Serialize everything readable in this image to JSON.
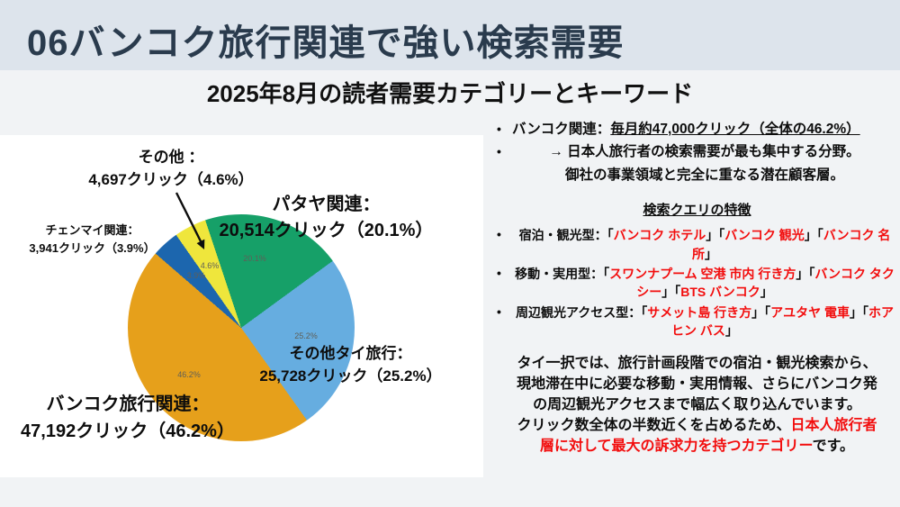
{
  "colors": {
    "header_band": "#dde4ec",
    "header_text": "#2a3b4d",
    "background": "#f1f3f5",
    "panel": "#ffffff",
    "red": "#f20d0d",
    "pct_label": "#5f5f58"
  },
  "header": {
    "title": "06バンコク旅行関連で強い検索需要",
    "subtitle": "2025年8月の読者需要カテゴリーとキーワード"
  },
  "chart_data": {
    "type": "pie",
    "title": "2025年8月の読者需要カテゴリーとキーワード",
    "start_angle_deg": -18.5,
    "direction": "clockwise",
    "legend": "none",
    "slices": [
      {
        "label": "パタヤ関連",
        "clicks": 20514,
        "value": 20.1,
        "pct_label": "20.1%",
        "color": "#16a068"
      },
      {
        "label": "その他タイ旅行",
        "clicks": 25728,
        "value": 25.2,
        "pct_label": "25.2%",
        "color": "#66ade0"
      },
      {
        "label": "バンコク旅行関連",
        "clicks": 47192,
        "value": 46.2,
        "pct_label": "46.2%",
        "color": "#e6a01b"
      },
      {
        "label": "チェンマイ関連",
        "clicks": 3941,
        "value": 3.9,
        "pct_label": "3.9%",
        "color": "#1c66ae"
      },
      {
        "label": "その他",
        "clicks": 4697,
        "value": 4.6,
        "pct_label": "4.6%",
        "color": "#efe63c"
      }
    ],
    "callouts": {
      "sonota": {
        "line1": "その他 ：",
        "line2": "4,697クリック（4.6%）"
      },
      "chiangmai": {
        "line1": "チェンマイ関連：",
        "line2": "3,941クリック（3.9%）"
      },
      "pattaya": {
        "line1": "パタヤ関連：",
        "line2": "20,514クリック（20.1%）"
      },
      "other_thai": {
        "line1": "その他タイ旅行：",
        "line2": "25,728クリック（25.2%）"
      },
      "bangkok": {
        "line1": "バンコク旅行関連：",
        "line2": "47,192クリック（46.2%）"
      }
    }
  },
  "right_column": {
    "bullet_char": "•",
    "bullets_top": [
      {
        "segments": [
          {
            "t": "バンコク関連：",
            "c": "k"
          },
          {
            "t": "毎月約47,000クリック（全体の46.2%）",
            "c": "ku"
          }
        ]
      },
      {
        "segments": [
          {
            "t": "→ 日本人旅行者の検索需要が最も集中する分野。",
            "c": "k"
          }
        ]
      },
      {
        "segments": [
          {
            "t": "御社の事業領域と完全に重なる潜在顧客層。",
            "c": "k"
          }
        ]
      }
    ],
    "features_heading": "検索クエリの特徴",
    "bullets_features": [
      {
        "segments": [
          {
            "t": "宿泊・観光型：「",
            "c": "k"
          },
          {
            "t": "バンコク ホテル",
            "c": "r"
          },
          {
            "t": "」「",
            "c": "k"
          },
          {
            "t": "バンコク 観光",
            "c": "r"
          },
          {
            "t": "」「",
            "c": "k"
          },
          {
            "t": "バンコク 名所",
            "c": "r"
          },
          {
            "t": "」",
            "c": "k"
          }
        ]
      },
      {
        "segments": [
          {
            "t": "移動・実用型：「",
            "c": "k"
          },
          {
            "t": "スワンナプーム 空港 市内 行き方",
            "c": "r"
          },
          {
            "t": "」「",
            "c": "k"
          },
          {
            "t": "バンコク タクシー",
            "c": "r"
          },
          {
            "t": "」「",
            "c": "k"
          },
          {
            "t": "BTS バンコク",
            "c": "r"
          },
          {
            "t": "」",
            "c": "k"
          }
        ]
      },
      {
        "segments": [
          {
            "t": "周辺観光アクセス型：「",
            "c": "k"
          },
          {
            "t": "サメット島 行き方",
            "c": "r"
          },
          {
            "t": "」「",
            "c": "k"
          },
          {
            "t": "アユタヤ 電車",
            "c": "r"
          },
          {
            "t": "」「",
            "c": "k"
          },
          {
            "t": "ホアヒン バス",
            "c": "r"
          },
          {
            "t": "」",
            "c": "k"
          }
        ]
      }
    ],
    "paragraphs": [
      {
        "segments": [
          {
            "t": "タイ一択では、旅行計画段階での宿泊・観光検索から、現地滞在中に必要な移動・実用情報、さらにバンコク発の周辺観光アクセスまで幅広く取り込んでいます。",
            "c": "k"
          }
        ]
      },
      {
        "segments": [
          {
            "t": "クリック数全体の半数近くを占めるため、",
            "c": "k"
          },
          {
            "t": "日本人旅行者層に対して最大の訴求力を持つカテゴリー",
            "c": "r"
          },
          {
            "t": "です。",
            "c": "k"
          }
        ]
      }
    ]
  }
}
